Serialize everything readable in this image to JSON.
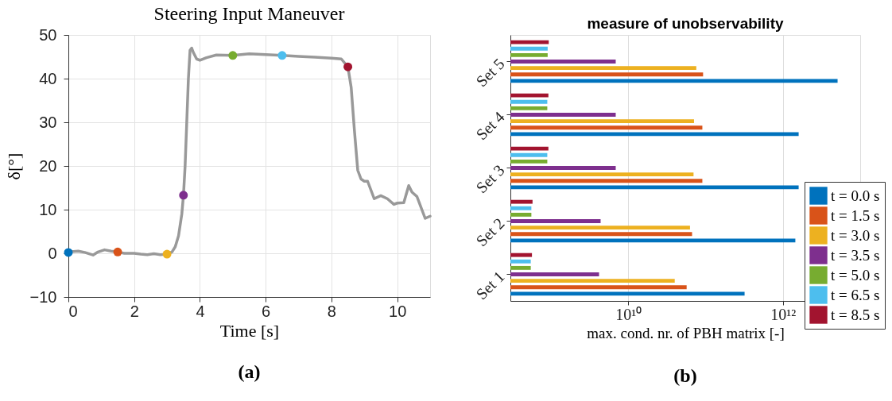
{
  "chart_data": [
    {
      "type": "line",
      "title": "Steering Input Maneuver",
      "xlabel": "Time [s]",
      "ylabel": "δ[°]",
      "xlim": [
        0,
        11
      ],
      "xticks": [
        0,
        2,
        4,
        6,
        8,
        10
      ],
      "ylim": [
        -10,
        50
      ],
      "yticks": [
        -10,
        0,
        10,
        20,
        30,
        40,
        50
      ],
      "grid": true,
      "annotations": [
        "(a)"
      ],
      "series": [
        {
          "type": "line",
          "color": "#999999",
          "line_style": "solid",
          "x": [
            0,
            0.3,
            0.5,
            0.75,
            0.9,
            1.1,
            1.3,
            1.5,
            1.7,
            2.0,
            2.2,
            2.4,
            2.6,
            2.8,
            3.0,
            3.15,
            3.25,
            3.35,
            3.45,
            3.5,
            3.55,
            3.6,
            3.65,
            3.7,
            3.75,
            3.8,
            3.9,
            4.0,
            4.2,
            4.5,
            5.0,
            5.5,
            6.0,
            6.5,
            7.0,
            7.5,
            8.0,
            8.3,
            8.5,
            8.6,
            8.7,
            8.8,
            8.9,
            9.0,
            9.1,
            9.2,
            9.3,
            9.5,
            9.7,
            9.9,
            10.0,
            10.2,
            10.35,
            10.45,
            10.6,
            10.75,
            10.85,
            11.0
          ],
          "values": [
            0.3,
            0.5,
            0.2,
            -0.4,
            0.3,
            0.8,
            0.5,
            0.3,
            0.0,
            0.0,
            -0.2,
            -0.3,
            -0.1,
            -0.3,
            -0.2,
            0.3,
            1.5,
            4,
            9,
            13.3,
            20,
            30,
            40,
            46.5,
            47,
            46,
            44.5,
            44.2,
            44.8,
            45.4,
            45.3,
            45.7,
            45.5,
            45.3,
            45.1,
            44.9,
            44.7,
            44.5,
            42.7,
            38,
            28,
            19,
            17,
            16.5,
            16.5,
            14.5,
            12.5,
            13.2,
            12.5,
            11.2,
            11.5,
            11.6,
            15.5,
            14,
            13,
            10,
            8,
            8.5
          ]
        },
        {
          "type": "scatter",
          "marker": "circle",
          "x": [
            0,
            1.5,
            3.0,
            3.5,
            5.0,
            6.5,
            8.5
          ],
          "values": [
            0.2,
            0.3,
            -0.2,
            13.3,
            45.3,
            45.3,
            42.7
          ],
          "colors": [
            "#0072bd",
            "#d95319",
            "#edb120",
            "#7e2f8e",
            "#77ac30",
            "#4dbeee",
            "#a2142f"
          ]
        }
      ]
    },
    {
      "type": "bar",
      "orientation": "horizontal",
      "title": "measure of unobservability",
      "xlabel": "max. cond. nr. of PBH matrix [-]",
      "log": "x",
      "xlim": [
        300000000.0,
        10000000000000.0
      ],
      "xticks": [
        {
          "value": 10000000000.0,
          "label": "10¹⁰"
        },
        {
          "value": 1000000000000.0,
          "label": "10¹²"
        }
      ],
      "grid": "x",
      "legend": "bottom right",
      "annotations": [
        "(b)"
      ],
      "categories": [
        "Set 5",
        "Set 4",
        "Set 3",
        "Set 2",
        "Set 1"
      ],
      "series": [
        {
          "name": "t = 0.0 s",
          "color": "#0072bd",
          "values": [
            5100000000000.0,
            1600000000000.0,
            1600000000000.0,
            1450000000000.0,
            320000000000.0
          ]
        },
        {
          "name": "t = 1.5 s",
          "color": "#d95319",
          "values": [
            93000000000.0,
            91000000000.0,
            91000000000.0,
            67000000000.0,
            57000000000.0
          ]
        },
        {
          "name": "t = 3.0 s",
          "color": "#edb120",
          "values": [
            76000000000.0,
            71000000000.0,
            70000000000.0,
            63000000000.0,
            40000000000.0
          ]
        },
        {
          "name": "t = 3.5 s",
          "color": "#7e2f8e",
          "values": [
            6900000000.0,
            6900000000.0,
            6900000000.0,
            4400000000.0,
            4200000000.0
          ]
        },
        {
          "name": "t = 5.0 s",
          "color": "#77ac30",
          "values": [
            910000000.0,
            900000000.0,
            900000000.0,
            560000000.0,
            550000000.0
          ]
        },
        {
          "name": "t = 6.5 s",
          "color": "#4dbeee",
          "values": [
            910000000.0,
            900000000.0,
            900000000.0,
            560000000.0,
            550000000.0
          ]
        },
        {
          "name": "t = 8.5 s",
          "color": "#a2142f",
          "values": [
            940000000.0,
            930000000.0,
            930000000.0,
            580000000.0,
            570000000.0
          ]
        }
      ]
    }
  ]
}
